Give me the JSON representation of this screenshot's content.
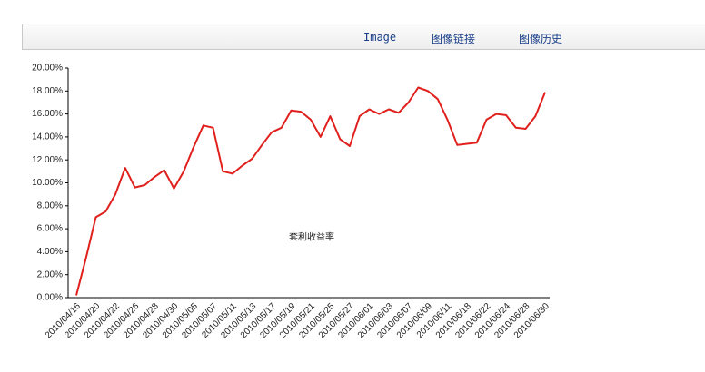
{
  "toolbar": {
    "tabs": [
      "Image",
      "图像链接",
      "图像历史"
    ]
  },
  "chart_data": {
    "type": "line",
    "annotation": "套利收益率",
    "categories": [
      "2010/04/16",
      null,
      "2010/04/20",
      null,
      "2010/04/22",
      null,
      "2010/04/26",
      null,
      "2010/04/28",
      null,
      "2010/04/30",
      null,
      "2010/05/05",
      null,
      "2010/05/07",
      null,
      "2010/05/11",
      null,
      "2010/05/13",
      null,
      "2010/05/17",
      null,
      "2010/05/19",
      null,
      "2010/05/21",
      null,
      "2010/05/25",
      null,
      "2010/05/27",
      null,
      "2010/06/01",
      null,
      "2010/06/03",
      null,
      "2010/06/07",
      null,
      "2010/06/09",
      null,
      "2010/06/11",
      null,
      "2010/06/18",
      null,
      "2010/06/22",
      null,
      "2010/06/24",
      null,
      "2010/06/28",
      null,
      "2010/06/30"
    ],
    "values": [
      0.2,
      3.5,
      7.0,
      7.5,
      9.0,
      11.3,
      9.6,
      9.8,
      10.5,
      11.1,
      9.5,
      11.0,
      13.1,
      15.0,
      14.8,
      11.0,
      10.8,
      11.5,
      12.1,
      13.3,
      14.4,
      14.8,
      16.3,
      16.2,
      15.5,
      14.0,
      15.8,
      13.8,
      13.2,
      15.8,
      16.4,
      16.0,
      16.4,
      16.1,
      17.0,
      18.3,
      18.0,
      17.3,
      15.5,
      13.3,
      13.4,
      13.5,
      15.5,
      16.0,
      15.9,
      14.8,
      14.7,
      15.8,
      17.9
    ],
    "color": "#e0201c",
    "ylim": [
      0,
      20
    ],
    "yticks": [
      {
        "value": 0,
        "label": "0.00%"
      },
      {
        "value": 2,
        "label": "2.00%"
      },
      {
        "value": 4,
        "label": "4.00%"
      },
      {
        "value": 6,
        "label": "6.00%"
      },
      {
        "value": 8,
        "label": "8.00%"
      },
      {
        "value": 10,
        "label": "10.00%"
      },
      {
        "value": 12,
        "label": "12.00%"
      },
      {
        "value": 14,
        "label": "14.00%"
      },
      {
        "value": 16,
        "label": "16.00%"
      },
      {
        "value": 18,
        "label": "18.00%"
      },
      {
        "value": 20,
        "label": "20.00%"
      }
    ]
  }
}
